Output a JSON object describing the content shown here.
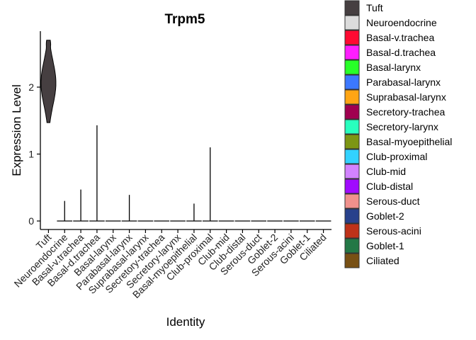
{
  "chart_data": {
    "type": "violin",
    "title": "Trpm5",
    "xlabel": "Identity",
    "ylabel": "Expression Level",
    "ylim": [
      -0.1,
      2.8
    ],
    "yticks": [
      0,
      1,
      2
    ],
    "grid": false,
    "legend_position": "right",
    "categories": [
      "Tuft",
      "Neuroendocrine",
      "Basal-v.trachea",
      "Basal-d.trachea",
      "Basal-larynx",
      "Parabasal-larynx",
      "Suprabasal-larynx",
      "Secretory-trachea",
      "Secretory-larynx",
      "Basal-myoepithelial",
      "Club-proximal",
      "Club-mid",
      "Club-distal",
      "Serous-duct",
      "Goblet-2",
      "Serous-acini",
      "Goblet-1",
      "Ciliated"
    ],
    "colors": [
      "#463F41",
      "#DCDCDC",
      "#FF0A32",
      "#FF1EFF",
      "#28FF28",
      "#3C78FF",
      "#FFA514",
      "#A00050",
      "#28FFBE",
      "#7D9614",
      "#32D2FF",
      "#D282FF",
      "#A00AFF",
      "#F0918C",
      "#28418C",
      "#BE3219",
      "#237846",
      "#785014"
    ],
    "min_values": [
      1.47,
      0,
      0,
      0,
      0,
      0,
      0,
      0,
      0,
      0,
      0,
      0,
      0,
      0,
      0,
      0,
      0,
      0
    ],
    "max_values": [
      2.7,
      0.3,
      0.47,
      1.43,
      0,
      0.39,
      0,
      0,
      0,
      0.26,
      1.1,
      0,
      0,
      0,
      0,
      0,
      0,
      0
    ]
  }
}
